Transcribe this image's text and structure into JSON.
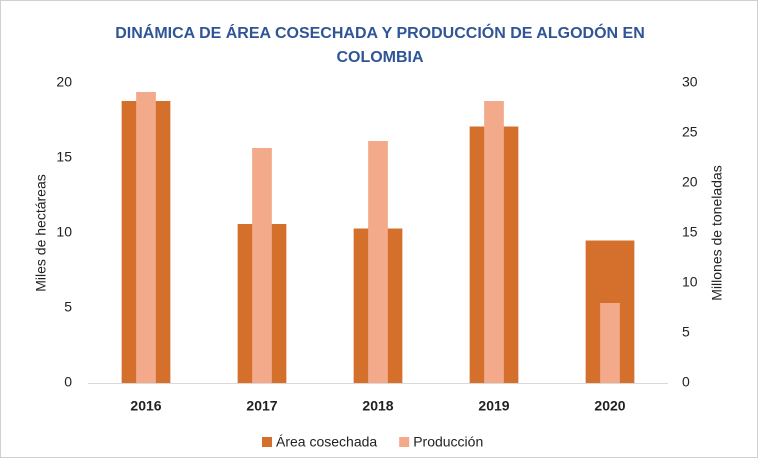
{
  "chart_data": {
    "type": "bar",
    "title": "DINÁMICA DE ÁREA COSECHADA Y PRODUCCIÓN DE ALGODÓN EN COLOMBIA",
    "categories": [
      "2016",
      "2017",
      "2018",
      "2019",
      "2020"
    ],
    "series": [
      {
        "name": "Área cosechada",
        "color": "#d4702b",
        "values": [
          18.8,
          10.6,
          10.3,
          17.1,
          9.5
        ]
      },
      {
        "name": "Producción",
        "color": "#f2aa8a",
        "axis": "y2",
        "values": [
          29.1,
          23.5,
          24.2,
          28.2,
          8.0
        ]
      }
    ],
    "ylabel": "Miles de hectáreas",
    "y2label": "Millones de toneladas",
    "ylim": [
      0,
      20
    ],
    "yticks": [
      0,
      5,
      10,
      15,
      20
    ],
    "y2lim": [
      0,
      30
    ],
    "y2ticks": [
      0,
      5,
      10,
      15,
      20,
      25,
      30
    ],
    "grid": false,
    "legend": "bottom"
  }
}
